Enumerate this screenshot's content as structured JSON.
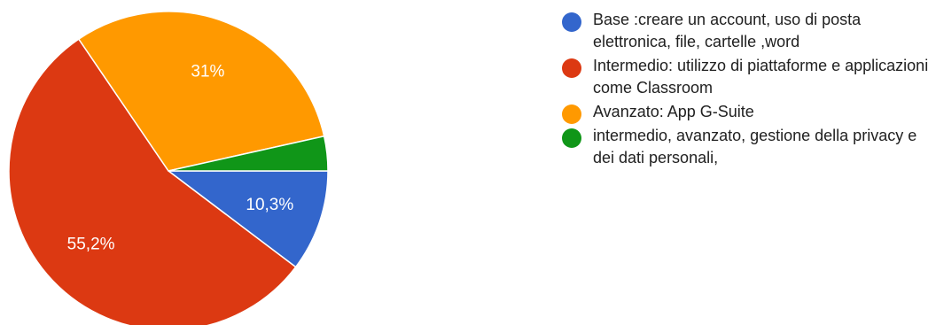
{
  "chart_data": {
    "type": "pie",
    "slices": [
      {
        "name": "Base :creare un account, uso di posta elettronica, file, cartelle ,word",
        "value": 10.3,
        "label": "10,3%",
        "color": "#3366CC"
      },
      {
        "name": "Intermedio: utilizzo di piattaforme e applicazioni come Classroom",
        "value": 55.2,
        "label": "55,2%",
        "color": "#DC3912"
      },
      {
        "name": "Avanzato: App G-Suite",
        "value": 31.0,
        "label": "31%",
        "color": "#FF9900"
      },
      {
        "name": "intermedio, avanzato, gestione della privacy e dei dati personali,",
        "value": 3.5,
        "label": "",
        "color": "#109618"
      }
    ],
    "legend_position": "right"
  }
}
